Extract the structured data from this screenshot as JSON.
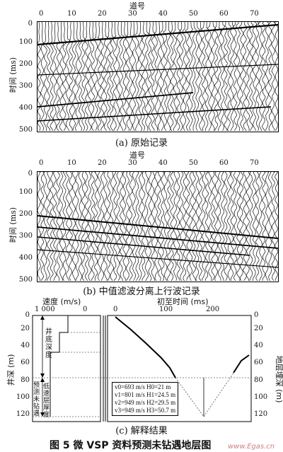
{
  "panel_a": {
    "top_label": "道号",
    "y_label": "时间 (ms)",
    "x_ticks": [
      "0",
      "10",
      "20",
      "30",
      "40",
      "50",
      "60",
      "70"
    ],
    "y_ticks": [
      "0",
      "100",
      "200",
      "300",
      "400",
      "500"
    ],
    "caption": "(a) 原始记录"
  },
  "panel_b": {
    "top_label": "道号",
    "y_label": "时间 (ms)",
    "x_ticks": [
      "0",
      "10",
      "20",
      "30",
      "40",
      "50",
      "60",
      "70"
    ],
    "y_ticks": [
      "0",
      "100",
      "200",
      "300",
      "400",
      "500"
    ],
    "caption": "(b) 中值滤波分离上行波记录"
  },
  "panel_c": {
    "velocity_label": "速度 (m/s)",
    "velocity_ticks": [
      "1 000",
      "0"
    ],
    "time_label": "初至时间 (ms)",
    "time_ticks": [
      "0",
      "100",
      "200"
    ],
    "left_y_label": "井深 (m)",
    "right_y_label": "地层埋深 (m)",
    "y_ticks": [
      "0",
      "20",
      "40",
      "60",
      "80",
      "100",
      "120"
    ],
    "well_bottom_label": "井底深度",
    "predicted_label": "预测未钻遇",
    "low_velocity_label": "低速层厚度",
    "legend": [
      "v0=693 m/s  H0=21 m",
      "v1=801 m/s  H1=24.5 m",
      "v2=949 m/s  H2=29.5 m",
      "v3=949 m/s  H3=50.7 m"
    ],
    "caption": "(c) 解释结果"
  },
  "figure_title": "图 5   微 VSP 资料预测未钻遇地层图",
  "watermark": "www.Egas.cn"
}
